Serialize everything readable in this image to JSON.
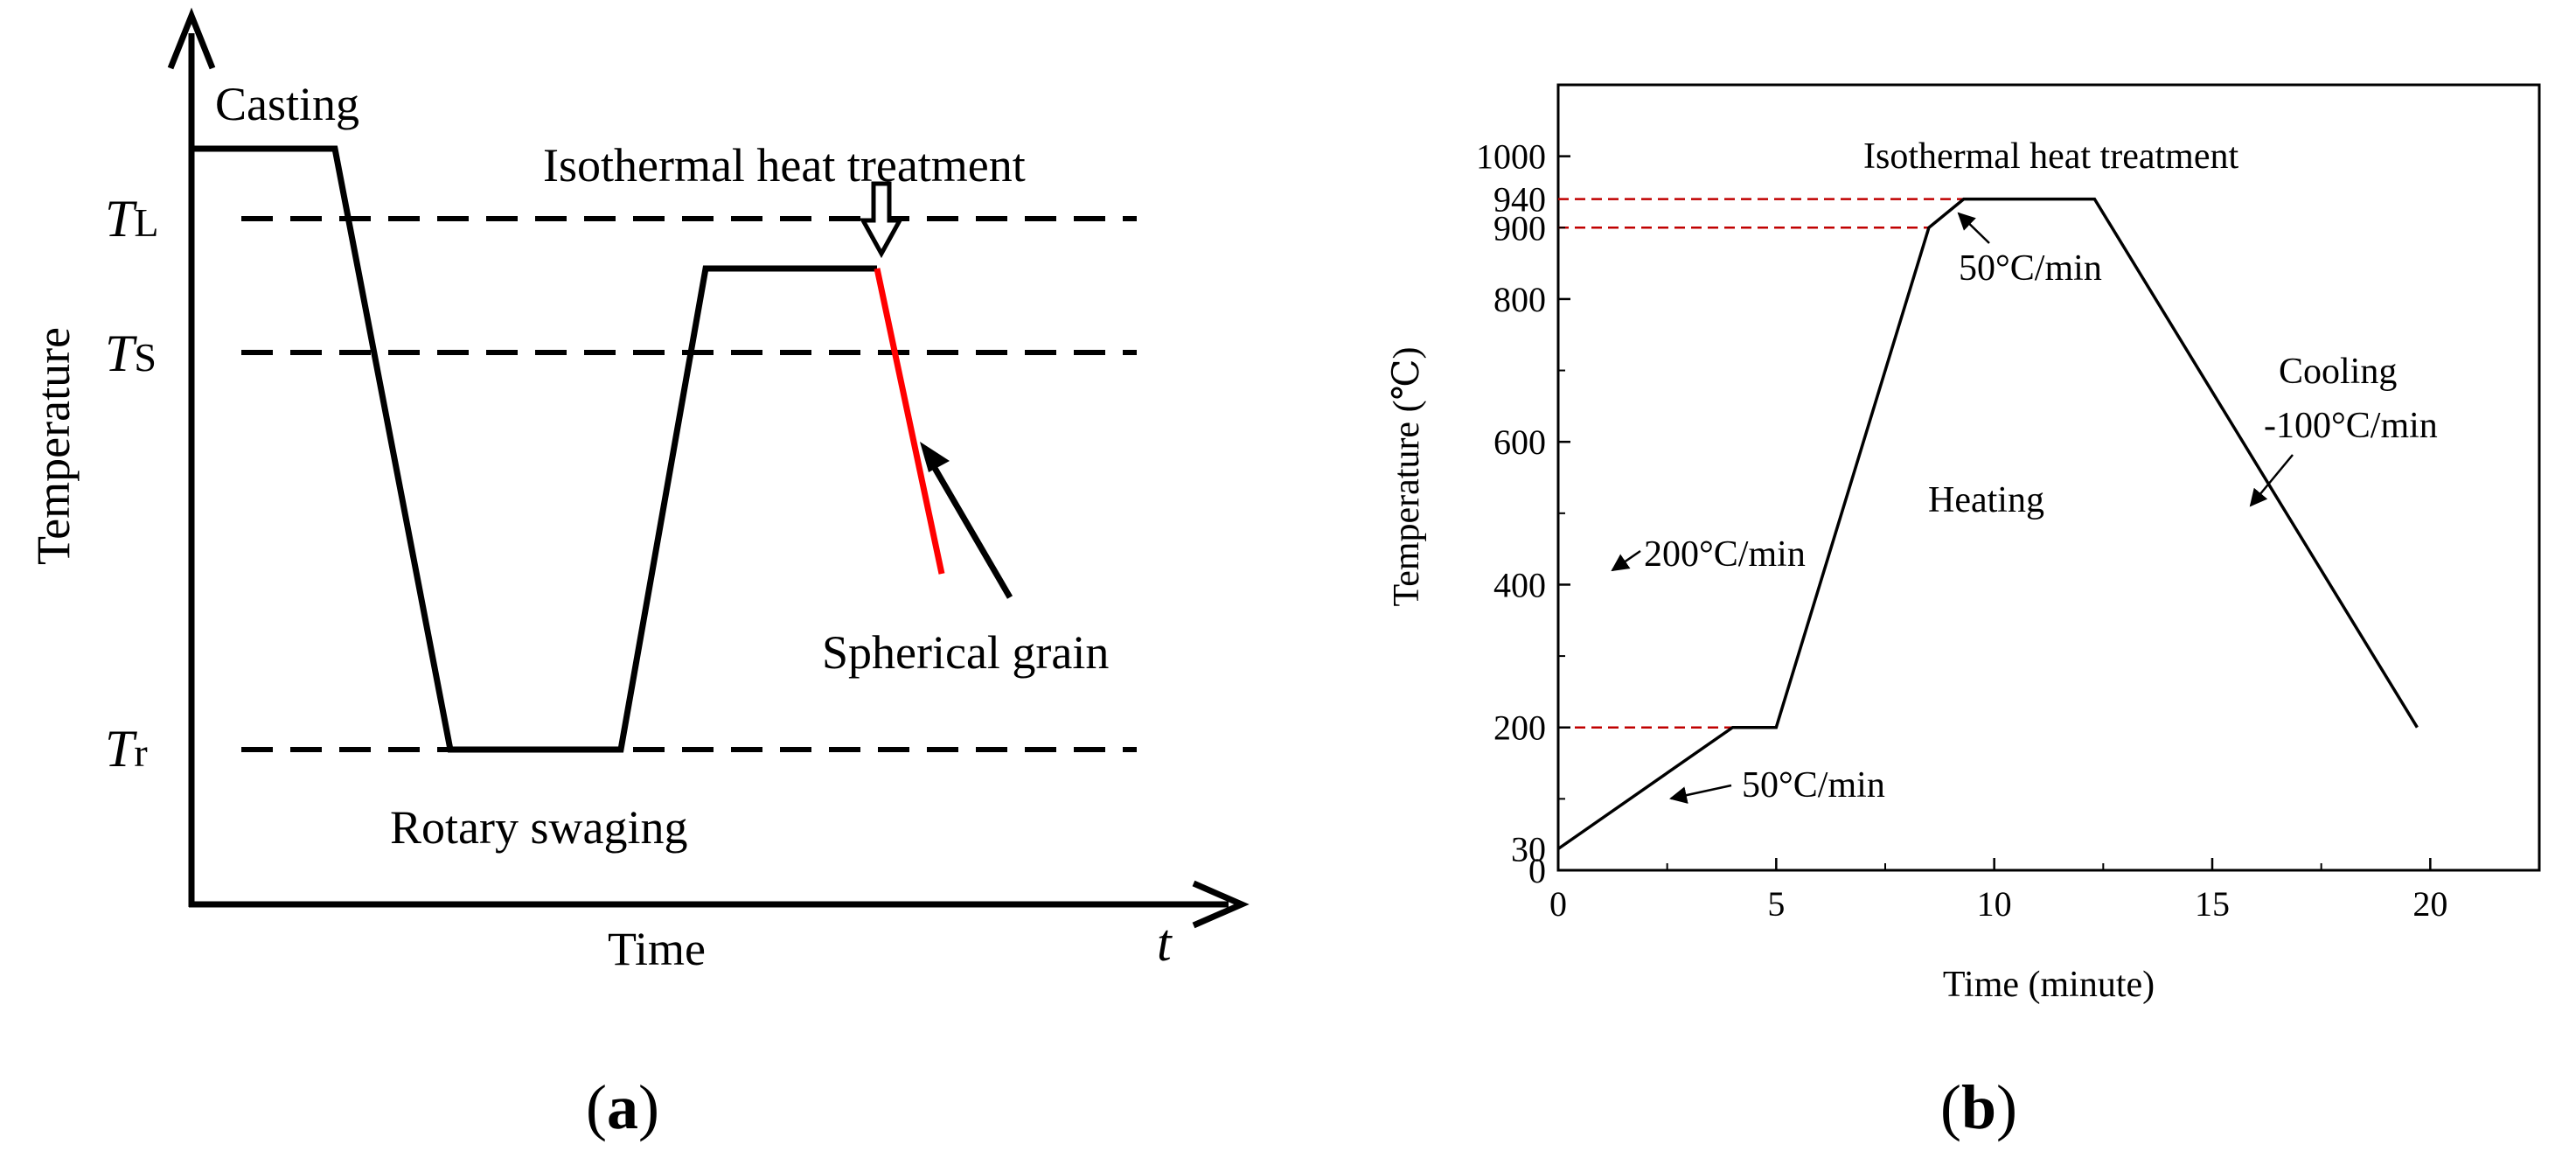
{
  "colors": {
    "ink": "#000000",
    "red": "#ff0000",
    "guide_red": "#c00000",
    "background": "#ffffff"
  },
  "panel_a": {
    "caption_open": "(",
    "caption_letter": "a",
    "caption_close": ")",
    "ylabel": "Temperature",
    "xlabel": "Time",
    "x_symbol": "t",
    "levels": [
      {
        "name": "liquidus",
        "label_main": "T",
        "label_sub": "L"
      },
      {
        "name": "solidus",
        "label_main": "T",
        "label_sub": "S"
      },
      {
        "name": "room",
        "label_main": "T",
        "label_sub": "r"
      }
    ],
    "annotations": {
      "casting": "Casting",
      "isothermal": "Isothermal heat treatment",
      "spherical": "Spherical grain",
      "swaging": "Rotary swaging"
    }
  },
  "chart_data": [
    {
      "type": "line",
      "title": "",
      "xlabel": "Time",
      "ylabel": "Temperature",
      "schematic": true,
      "levels": [
        "TL",
        "TS",
        "Tr"
      ],
      "stages": [
        "Casting",
        "Rotary swaging",
        "Isothermal heat treatment",
        "Spherical grain"
      ]
    },
    {
      "type": "line",
      "title": "",
      "xlabel": "Time (minute)",
      "ylabel": "Temperature (℃)",
      "xlim": [
        0,
        22.5
      ],
      "ylim": [
        0,
        1100
      ],
      "xticks": [
        0,
        5,
        10,
        15,
        20
      ],
      "yticks": [
        0,
        200,
        400,
        600,
        800,
        1000
      ],
      "red_ticks": [
        30,
        900,
        940
      ],
      "x": [
        0,
        4,
        5,
        8.5,
        9.3,
        12.3,
        19.7
      ],
      "y": [
        30,
        200,
        200,
        900,
        940,
        940,
        200
      ],
      "reference_lines": [
        200,
        900,
        940
      ],
      "annotations": {
        "heat_treatment": "Isothermal heat treatment",
        "rate_top": "50°C/min",
        "heating_label": "Heating",
        "heating_rate": "200°C/min",
        "cooling_label": "Cooling",
        "cooling_rate": "-100°C/min",
        "rate_bottom": "50°C/min"
      },
      "caption_open": "(",
      "caption_letter": "b",
      "caption_close": ")"
    }
  ]
}
